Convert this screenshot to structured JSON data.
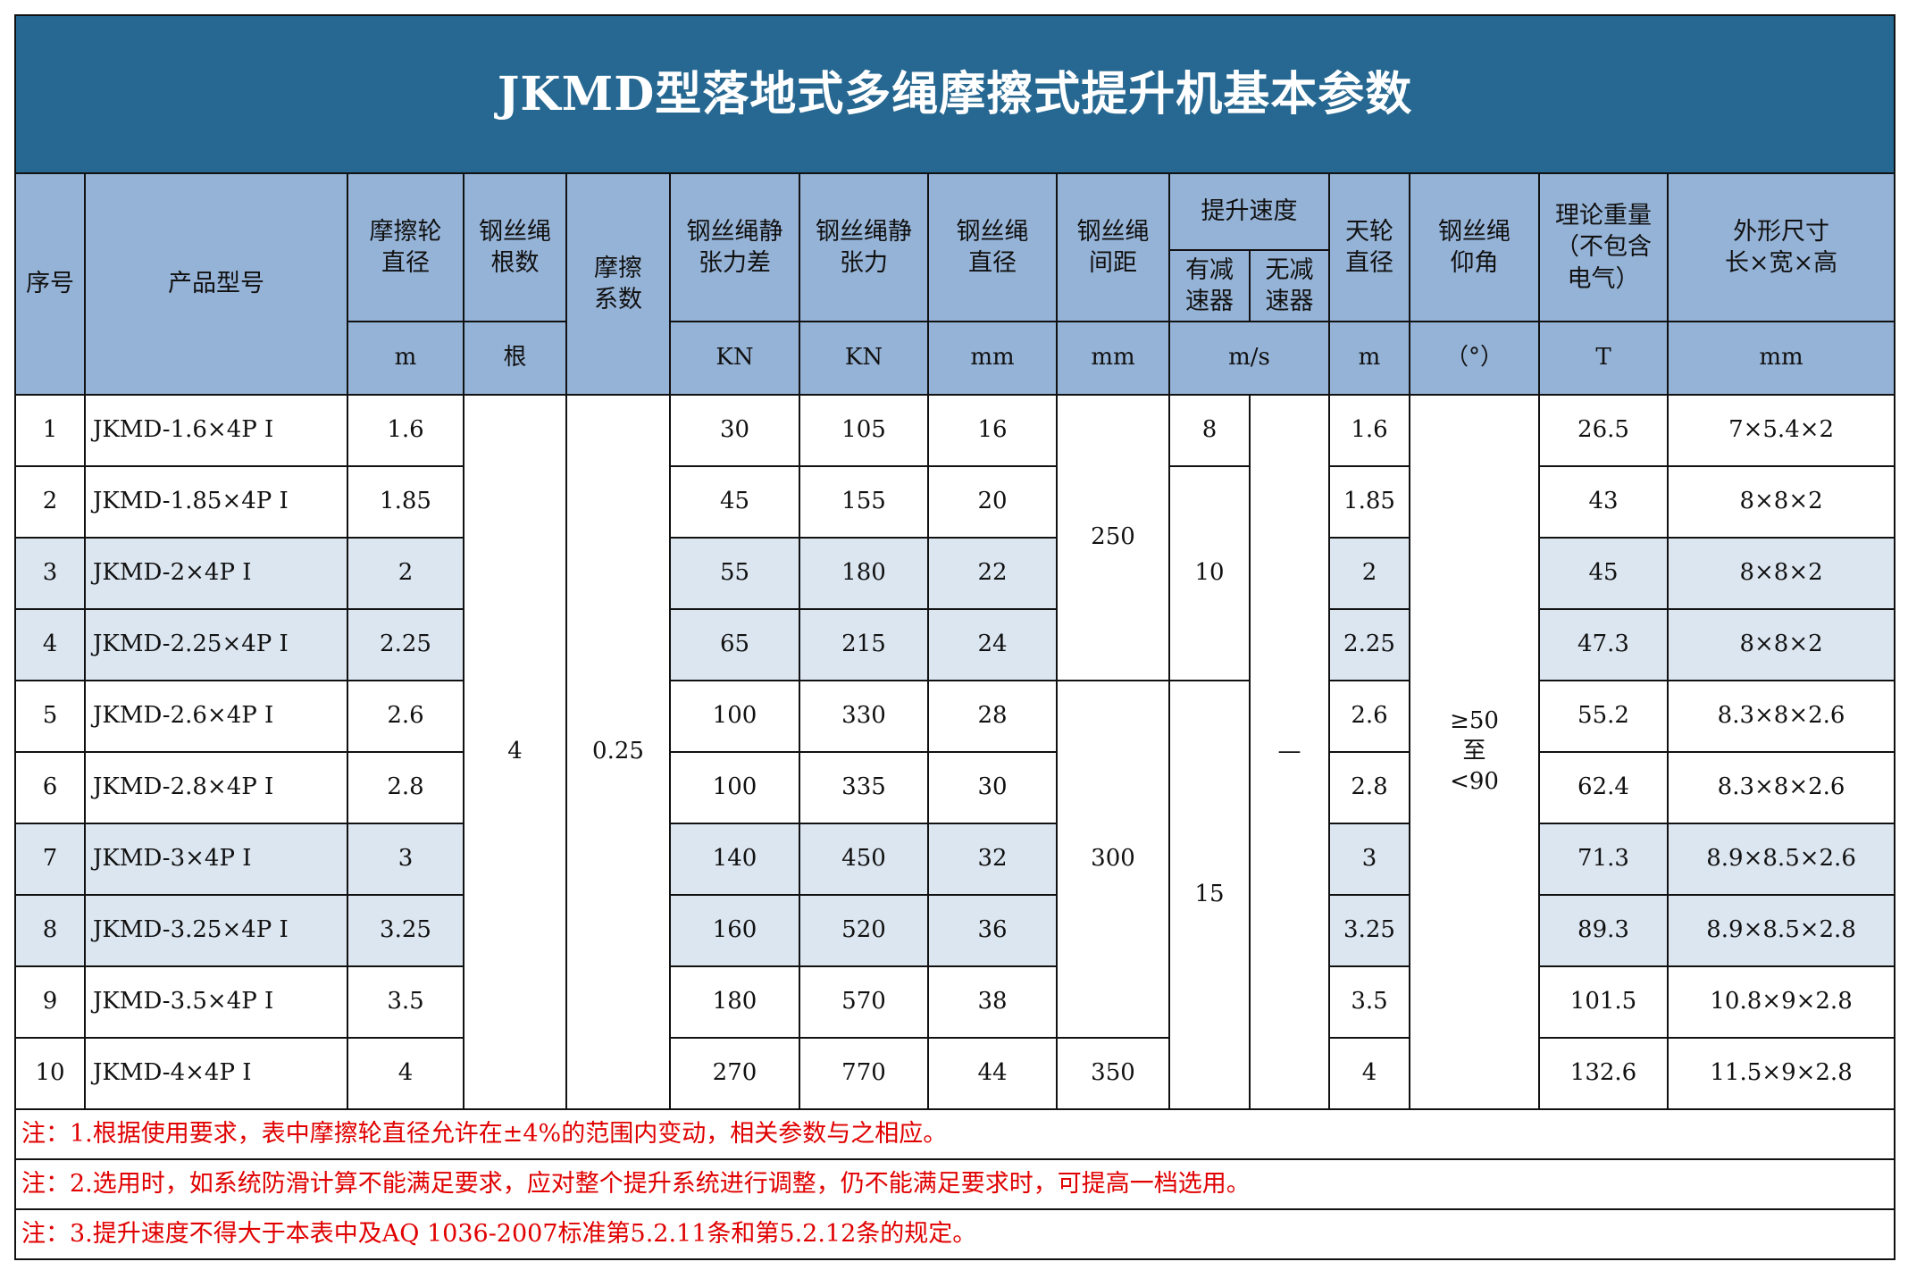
{
  "title": "JKMD型落地式多绳摩擦式提升机基本参数",
  "header": {
    "seq": "序号",
    "model": "产品型号",
    "friction_wheel_dia": [
      "摩擦轮",
      "直径"
    ],
    "rope_count": [
      "钢丝绳",
      "根数"
    ],
    "friction_coef": [
      "摩擦",
      "系数"
    ],
    "static_tension_diff": [
      "钢丝绳静",
      "张力差"
    ],
    "static_tension": [
      "钢丝绳静",
      "张力"
    ],
    "rope_dia": [
      "钢丝绳",
      "直径"
    ],
    "rope_spacing": [
      "钢丝绳",
      "间距"
    ],
    "hoist_speed": "提升速度",
    "with_reducer": [
      "有减",
      "速器"
    ],
    "without_reducer": [
      "无减",
      "速器"
    ],
    "head_sheave_dia": [
      "天轮",
      "直径"
    ],
    "rope_angle": [
      "钢丝绳",
      "仰角"
    ],
    "weight": [
      "理论重量",
      "（不包含",
      "电气）"
    ],
    "dimensions": [
      "外形尺寸",
      "长×宽×高"
    ]
  },
  "units": {
    "friction_wheel_dia": "m",
    "rope_count": "根",
    "static_tension_diff": "KN",
    "static_tension": "KN",
    "rope_dia": "mm",
    "rope_spacing": "mm",
    "hoist_speed": "m/s",
    "head_sheave_dia": "m",
    "rope_angle": "（°）",
    "weight": "T",
    "dimensions": "mm"
  },
  "merged": {
    "rope_count": "4",
    "friction_coef": "0.25",
    "rope_spacing": [
      "250",
      "300",
      "350"
    ],
    "with_reducer": [
      "8",
      "10",
      "15"
    ],
    "without_reducer": "—",
    "rope_angle": [
      "≥50",
      "至",
      "<90"
    ]
  },
  "rows": [
    {
      "seq": "1",
      "model": "JKMD-1.6×4P Ⅰ",
      "dia": "1.6",
      "diff": "30",
      "tension": "105",
      "rope_dia": "16",
      "sheave": "1.6",
      "weight": "26.5",
      "dims": "7×5.4×2"
    },
    {
      "seq": "2",
      "model": "JKMD-1.85×4P Ⅰ",
      "dia": "1.85",
      "diff": "45",
      "tension": "155",
      "rope_dia": "20",
      "sheave": "1.85",
      "weight": "43",
      "dims": "8×8×2"
    },
    {
      "seq": "3",
      "model": "JKMD-2×4P Ⅰ",
      "dia": "2",
      "diff": "55",
      "tension": "180",
      "rope_dia": "22",
      "sheave": "2",
      "weight": "45",
      "dims": "8×8×2"
    },
    {
      "seq": "4",
      "model": "JKMD-2.25×4P Ⅰ",
      "dia": "2.25",
      "diff": "65",
      "tension": "215",
      "rope_dia": "24",
      "sheave": "2.25",
      "weight": "47.3",
      "dims": "8×8×2"
    },
    {
      "seq": "5",
      "model": "JKMD-2.6×4P Ⅰ",
      "dia": "2.6",
      "diff": "100",
      "tension": "330",
      "rope_dia": "28",
      "sheave": "2.6",
      "weight": "55.2",
      "dims": "8.3×8×2.6"
    },
    {
      "seq": "6",
      "model": "JKMD-2.8×4P Ⅰ",
      "dia": "2.8",
      "diff": "100",
      "tension": "335",
      "rope_dia": "30",
      "sheave": "2.8",
      "weight": "62.4",
      "dims": "8.3×8×2.6"
    },
    {
      "seq": "7",
      "model": "JKMD-3×4P Ⅰ",
      "dia": "3",
      "diff": "140",
      "tension": "450",
      "rope_dia": "32",
      "sheave": "3",
      "weight": "71.3",
      "dims": "8.9×8.5×2.6"
    },
    {
      "seq": "8",
      "model": "JKMD-3.25×4P Ⅰ",
      "dia": "3.25",
      "diff": "160",
      "tension": "520",
      "rope_dia": "36",
      "sheave": "3.25",
      "weight": "89.3",
      "dims": "8.9×8.5×2.8"
    },
    {
      "seq": "9",
      "model": "JKMD-3.5×4P Ⅰ",
      "dia": "3.5",
      "diff": "180",
      "tension": "570",
      "rope_dia": "38",
      "sheave": "3.5",
      "weight": "101.5",
      "dims": "10.8×9×2.8"
    },
    {
      "seq": "10",
      "model": "JKMD-4×4P Ⅰ",
      "dia": "4",
      "diff": "270",
      "tension": "770",
      "rope_dia": "44",
      "sheave": "4",
      "weight": "132.6",
      "dims": "11.5×9×2.8"
    }
  ],
  "notes": [
    "注：1.根据使用要求，表中摩擦轮直径允许在±4%的范围内变动，相关参数与之相应。",
    "注：2.选用时，如系统防滑计算不能满足要求，应对整个提升系统进行调整，仍不能满足要求时，可提高一档选用。",
    "注：3.提升速度不得大于本表中及AQ 1036-2007标准第5.2.11条和第5.2.12条的规定。"
  ],
  "colors": {
    "title_bg": "#266891",
    "header_bg": "#95b3d7",
    "row_shade": "#dce6f1",
    "note_text": "#e00000"
  }
}
